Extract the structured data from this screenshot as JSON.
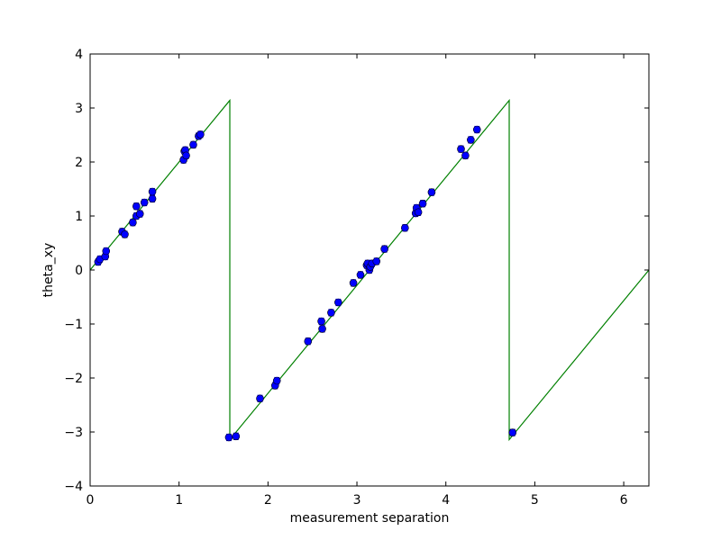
{
  "chart_data": {
    "type": "scatter",
    "title": "",
    "xlabel": "measurement separation",
    "ylabel": "theta_xy",
    "xlim": [
      0,
      6.283
    ],
    "ylim": [
      -4,
      4
    ],
    "xticks": [
      0,
      1,
      2,
      3,
      4,
      5,
      6
    ],
    "xtick_labels": [
      "0",
      "1",
      "2",
      "3",
      "4",
      "5",
      "6"
    ],
    "yticks": [
      -4,
      -3,
      -2,
      -1,
      0,
      1,
      2,
      3,
      4
    ],
    "ytick_labels": [
      "−4",
      "−3",
      "−2",
      "−1",
      "0",
      "1",
      "2",
      "3",
      "4"
    ],
    "grid": false,
    "colors": {
      "points": "#0000ff",
      "fit_line": "#008000",
      "errorbar": "#0000ff"
    },
    "series": [
      {
        "kind": "points_with_errorbars",
        "x": [
          0.09,
          0.11,
          0.17,
          0.18,
          0.36,
          0.39,
          0.48,
          0.52,
          0.52,
          0.56,
          0.61,
          0.7,
          0.7,
          1.05,
          1.06,
          1.07,
          1.08,
          1.16,
          1.22,
          1.24,
          1.56,
          1.64,
          1.91,
          2.08,
          2.1,
          2.45,
          2.6,
          2.61,
          2.71,
          2.79,
          2.96,
          3.04,
          3.11,
          3.12,
          3.14,
          3.15,
          3.17,
          3.22,
          3.31,
          3.54,
          3.66,
          3.67,
          3.69,
          3.74,
          3.84,
          4.17,
          4.22,
          4.28,
          4.35,
          4.75
        ],
        "y": [
          0.15,
          0.2,
          0.25,
          0.35,
          0.71,
          0.66,
          0.88,
          1.0,
          1.18,
          1.04,
          1.25,
          1.32,
          1.45,
          2.04,
          2.2,
          2.22,
          2.12,
          2.32,
          2.48,
          2.51,
          -3.1,
          -3.08,
          -2.38,
          -2.14,
          -2.05,
          -1.32,
          -0.95,
          -1.09,
          -0.79,
          -0.6,
          -0.24,
          -0.09,
          0.09,
          0.12,
          0.0,
          0.06,
          0.12,
          0.16,
          0.39,
          0.78,
          1.05,
          1.15,
          1.07,
          1.23,
          1.44,
          2.24,
          2.12,
          2.41,
          2.6,
          -3.01
        ],
        "yerr": 0.06
      },
      {
        "kind": "line",
        "x": [
          0,
          1.5708,
          1.5708,
          4.7124,
          4.7124,
          6.2832
        ],
        "y": [
          0,
          3.1416,
          -3.1416,
          3.1416,
          -3.1416,
          0.0
        ]
      }
    ]
  }
}
